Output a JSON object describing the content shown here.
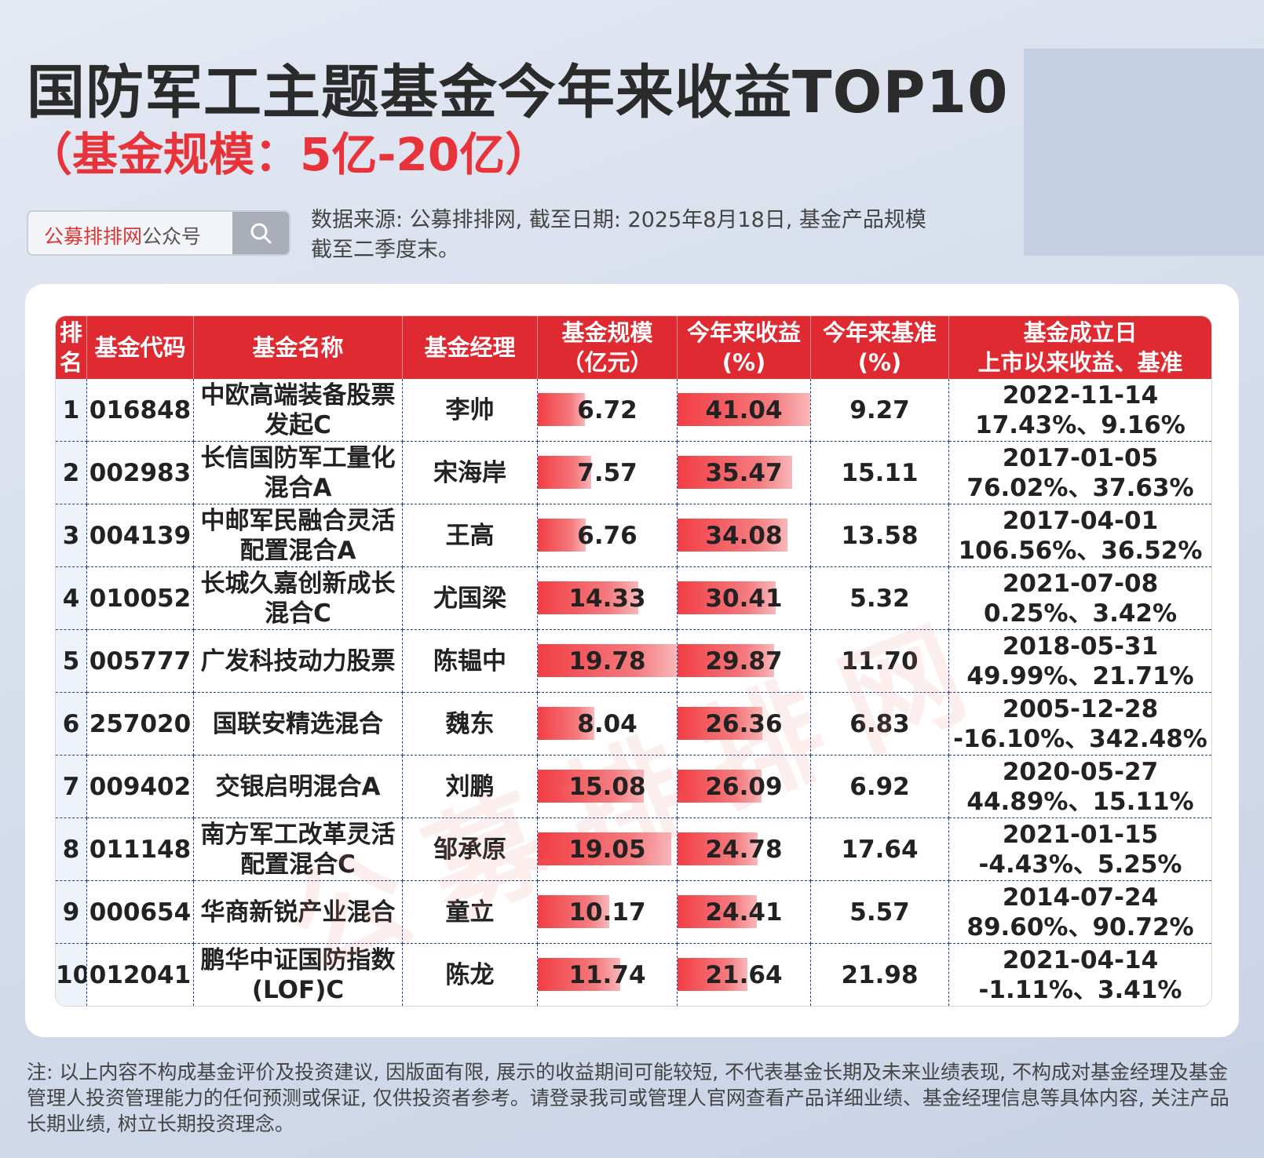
{
  "header": {
    "title": "国防军工主题基金今年来收益TOP10",
    "subtitle": "（基金规模：5亿-20亿）"
  },
  "search": {
    "brand": "公募排排网",
    "suffix": "公众号",
    "icon": "search-icon"
  },
  "source_line1": "数据来源: 公募排排网, 截至日期: 2025年8月18日, 基金产品规模",
  "source_line2": "截至二季度末。",
  "watermark": "公募排排网",
  "accent_color": "#e02a32",
  "table": {
    "headers": {
      "rank_1": "排",
      "rank_2": "名",
      "code": "基金代码",
      "name": "基金名称",
      "manager": "基金经理",
      "size_1": "基金规模",
      "size_2": "（亿元）",
      "ytd_1": "今年来收益",
      "ytd_2": "(%)",
      "bench_1": "今年来基准",
      "bench_2": "(%)",
      "launch_1": "基金成立日",
      "launch_2": "上市以来收益、基准"
    },
    "rows": [
      {
        "rank": "1",
        "code": "016848",
        "name_1": "中欧高端装备股票",
        "name_2": "发起C",
        "manager": "李帅",
        "size": "6.72",
        "ytd": "41.04",
        "bench": "9.27",
        "date": "2022-11-14",
        "since": "17.43%、9.16%"
      },
      {
        "rank": "2",
        "code": "002983",
        "name_1": "长信国防军工量化",
        "name_2": "混合A",
        "manager": "宋海岸",
        "size": "7.57",
        "ytd": "35.47",
        "bench": "15.11",
        "date": "2017-01-05",
        "since": "76.02%、37.63%"
      },
      {
        "rank": "3",
        "code": "004139",
        "name_1": "中邮军民融合灵活",
        "name_2": "配置混合A",
        "manager": "王高",
        "size": "6.76",
        "ytd": "34.08",
        "bench": "13.58",
        "date": "2017-04-01",
        "since": "106.56%、36.52%"
      },
      {
        "rank": "4",
        "code": "010052",
        "name_1": "长城久嘉创新成长",
        "name_2": "混合C",
        "manager": "尤国梁",
        "size": "14.33",
        "ytd": "30.41",
        "bench": "5.32",
        "date": "2021-07-08",
        "since": "0.25%、3.42%"
      },
      {
        "rank": "5",
        "code": "005777",
        "name_1": "广发科技动力股票",
        "name_2": "",
        "manager": "陈韫中",
        "size": "19.78",
        "ytd": "29.87",
        "bench": "11.70",
        "date": "2018-05-31",
        "since": "49.99%、21.71%"
      },
      {
        "rank": "6",
        "code": "257020",
        "name_1": "国联安精选混合",
        "name_2": "",
        "manager": "魏东",
        "size": "8.04",
        "ytd": "26.36",
        "bench": "6.83",
        "date": "2005-12-28",
        "since": "-16.10%、342.48%"
      },
      {
        "rank": "7",
        "code": "009402",
        "name_1": "交银启明混合A",
        "name_2": "",
        "manager": "刘鹏",
        "size": "15.08",
        "ytd": "26.09",
        "bench": "6.92",
        "date": "2020-05-27",
        "since": "44.89%、15.11%"
      },
      {
        "rank": "8",
        "code": "011148",
        "name_1": "南方军工改革灵活",
        "name_2": "配置混合C",
        "manager": "邹承原",
        "size": "19.05",
        "ytd": "24.78",
        "bench": "17.64",
        "date": "2021-01-15",
        "since": "-4.43%、5.25%"
      },
      {
        "rank": "9",
        "code": "000654",
        "name_1": "华商新锐产业混合",
        "name_2": "",
        "manager": "童立",
        "size": "10.17",
        "ytd": "24.41",
        "bench": "5.57",
        "date": "2014-07-24",
        "since": "89.60%、90.72%"
      },
      {
        "rank": "10",
        "code": "012041",
        "name_1": "鹏华中证国防指数",
        "name_2": "(LOF)C",
        "manager": "陈龙",
        "size": "11.74",
        "ytd": "21.64",
        "bench": "21.98",
        "date": "2021-04-14",
        "since": "-1.11%、3.41%"
      }
    ]
  },
  "note": "注: 以上内容不构成基金评价及投资建议, 因版面有限, 展示的收益期间可能较短, 不代表基金长期及未来业绩表现, 不构成对基金经理及基金管理人投资管理能力的任何预测或保证, 仅供投资者参考。请登录我司或管理人官网查看产品详细业绩、基金经理信息等具体内容, 关注产品长期业绩, 树立长期投资理念。"
}
